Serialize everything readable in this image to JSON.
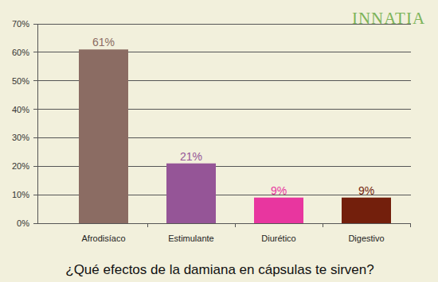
{
  "chart_data": {
    "type": "bar",
    "title": "¿Qué efectos de la damiana en cápsulas te sirven?",
    "categories": [
      "Afrodisíaco",
      "Estimulante",
      "Diurético",
      "Digestivo"
    ],
    "values": [
      61,
      21,
      9,
      9
    ],
    "value_labels": [
      "61%",
      "21%",
      "9%",
      "9%"
    ],
    "colors": [
      "#8b6c63",
      "#955597",
      "#e8369f",
      "#731f0c"
    ],
    "ylim": [
      0,
      70
    ],
    "yticks": [
      {
        "value": 0,
        "label": "0%"
      },
      {
        "value": 10,
        "label": "10%"
      },
      {
        "value": 20,
        "label": "20%"
      },
      {
        "value": 30,
        "label": "30%"
      },
      {
        "value": 40,
        "label": "40%"
      },
      {
        "value": 50,
        "label": "50%"
      },
      {
        "value": 60,
        "label": "60%"
      },
      {
        "value": 70,
        "label": "70%"
      }
    ],
    "grid": true,
    "data_labels": true,
    "annotations": [
      "INNATIA"
    ]
  }
}
